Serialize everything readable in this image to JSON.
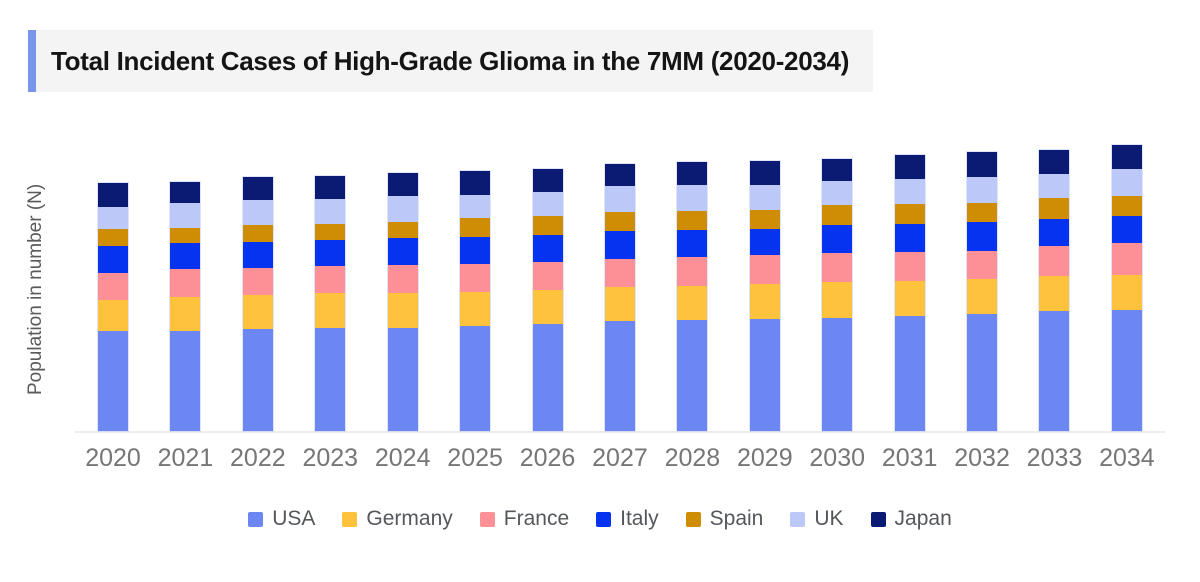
{
  "title": {
    "text": "Total Incident Cases of High-Grade Glioma in the 7MM  (2020-2034)"
  },
  "y_axis": {
    "label": "Population in number (N)"
  },
  "accent_color": "#7796EB",
  "chart_data": {
    "type": "bar",
    "stacked": true,
    "title": "Total Incident Cases of High-Grade Glioma in the 7MM (2020-2034)",
    "xlabel": "",
    "ylabel": "Population in number (N)",
    "legend_position": "bottom",
    "grid": false,
    "y_tick_labels_visible": false,
    "ylim": [
      0,
      290
    ],
    "note": "No numeric y-axis tick labels are shown in the figure; series values are relative stacked-segment sizes estimated from bar heights.",
    "categories": [
      "2020",
      "2021",
      "2022",
      "2023",
      "2024",
      "2025",
      "2026",
      "2027",
      "2028",
      "2029",
      "2030",
      "2031",
      "2032",
      "2033",
      "2034"
    ],
    "series": [
      {
        "name": "USA",
        "color": "#6C87F2",
        "values": [
          100,
          100,
          102,
          103,
          103,
          105,
          107,
          110,
          111,
          112,
          113,
          115,
          117,
          120,
          121
        ]
      },
      {
        "name": "Germany",
        "color": "#FFC23D",
        "values": [
          31,
          34,
          34,
          35,
          35,
          34,
          34,
          34,
          34,
          35,
          36,
          35,
          35,
          35,
          35
        ]
      },
      {
        "name": "France",
        "color": "#FD9097",
        "values": [
          27,
          28,
          27,
          27,
          28,
          28,
          28,
          28,
          29,
          29,
          29,
          29,
          28,
          30,
          32
        ]
      },
      {
        "name": "Italy",
        "color": "#0633EF",
        "values": [
          27,
          26,
          26,
          26,
          27,
          27,
          27,
          28,
          27,
          26,
          28,
          28,
          29,
          27,
          27
        ]
      },
      {
        "name": "Spain",
        "color": "#CE8D04",
        "values": [
          17,
          15,
          17,
          16,
          16,
          19,
          19,
          19,
          19,
          19,
          20,
          20,
          19,
          21,
          20
        ]
      },
      {
        "name": "UK",
        "color": "#BCC9F8",
        "values": [
          22,
          25,
          25,
          25,
          26,
          23,
          24,
          26,
          26,
          25,
          24,
          25,
          26,
          24,
          27
        ]
      },
      {
        "name": "Japan",
        "color": "#0B1B74",
        "values": [
          24,
          21,
          23,
          23,
          23,
          24,
          23,
          22,
          23,
          24,
          22,
          24,
          25,
          24,
          24
        ]
      }
    ]
  }
}
